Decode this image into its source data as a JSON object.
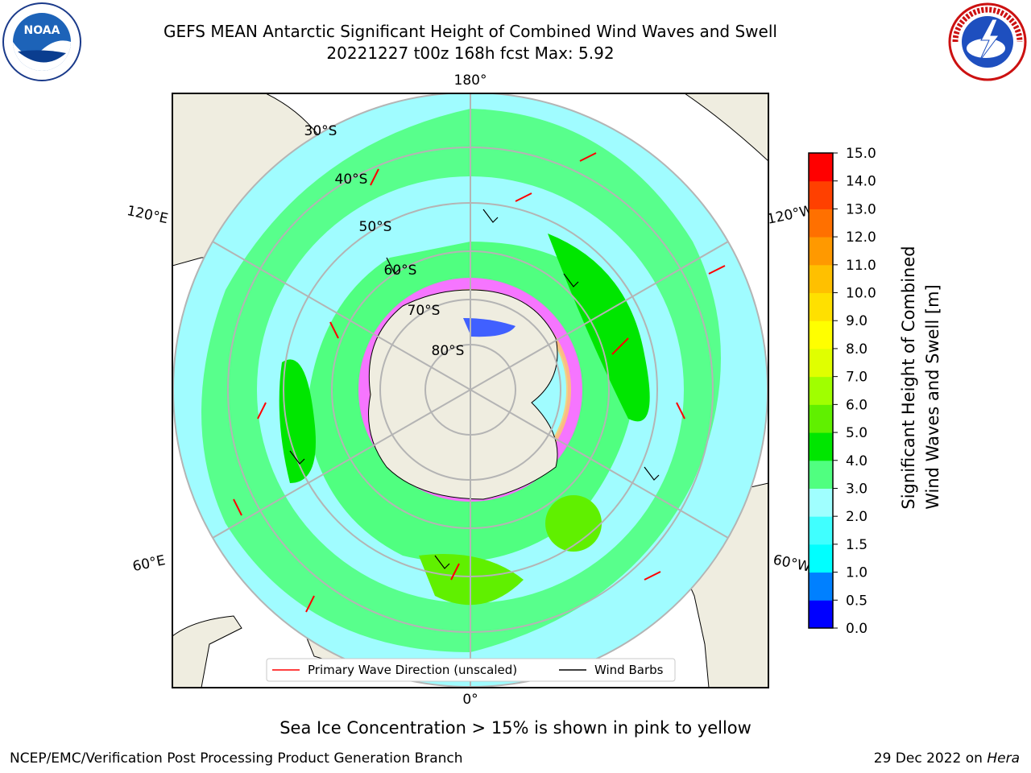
{
  "title": {
    "line1": "GEFS MEAN Antarctic Significant Height of Combined Wind Waves and Swell",
    "line2": "20221227 t00z 168h fcst   Max: 5.92"
  },
  "logos": {
    "left": "noaa-logo",
    "right": "nws-logo"
  },
  "map": {
    "lon_labels": {
      "top": "180°",
      "bottom": "0°",
      "upper_left": "120°E",
      "upper_right": "120°W",
      "lower_left": "60°E",
      "lower_right": "60°W"
    },
    "lat_labels": [
      "30°S",
      "40°S",
      "50°S",
      "60°S",
      "70°S",
      "80°S"
    ],
    "legend": {
      "primary_wave": "Primary Wave Direction (unscaled)",
      "wind_barbs": "Wind Barbs"
    },
    "colors": {
      "ocean": "#a0fcff",
      "land": "#efede0",
      "ice": "#ff66ff",
      "arrow": "#ff0000",
      "barb": "#000000"
    }
  },
  "colorbar": {
    "ticks": [
      "15.0",
      "14.0",
      "13.0",
      "12.0",
      "11.0",
      "10.0",
      "9.0",
      "8.0",
      "7.0",
      "6.0",
      "5.0",
      "4.0",
      "3.0",
      "2.0",
      "1.5",
      "1.0",
      "0.5",
      "0.0"
    ],
    "colors": [
      "#0000ff",
      "#0080ff",
      "#00ffff",
      "#40ffff",
      "#a0ffff",
      "#50ff80",
      "#00e600",
      "#60f000",
      "#a0ff00",
      "#e0ff00",
      "#ffff00",
      "#ffe000",
      "#ffc000",
      "#ff9900",
      "#ff7000",
      "#ff4000",
      "#ff0000"
    ],
    "label_line1": "Significant Height of Combined",
    "label_line2": "Wind Waves and Swell [m]"
  },
  "caption": "Sea Ice Concentration > 15% is shown in pink to yellow",
  "footer": {
    "left": "NCEP/EMC/Verification Post Processing Product Generation Branch",
    "date": "29 Dec 2022 on ",
    "host": "Hera"
  }
}
